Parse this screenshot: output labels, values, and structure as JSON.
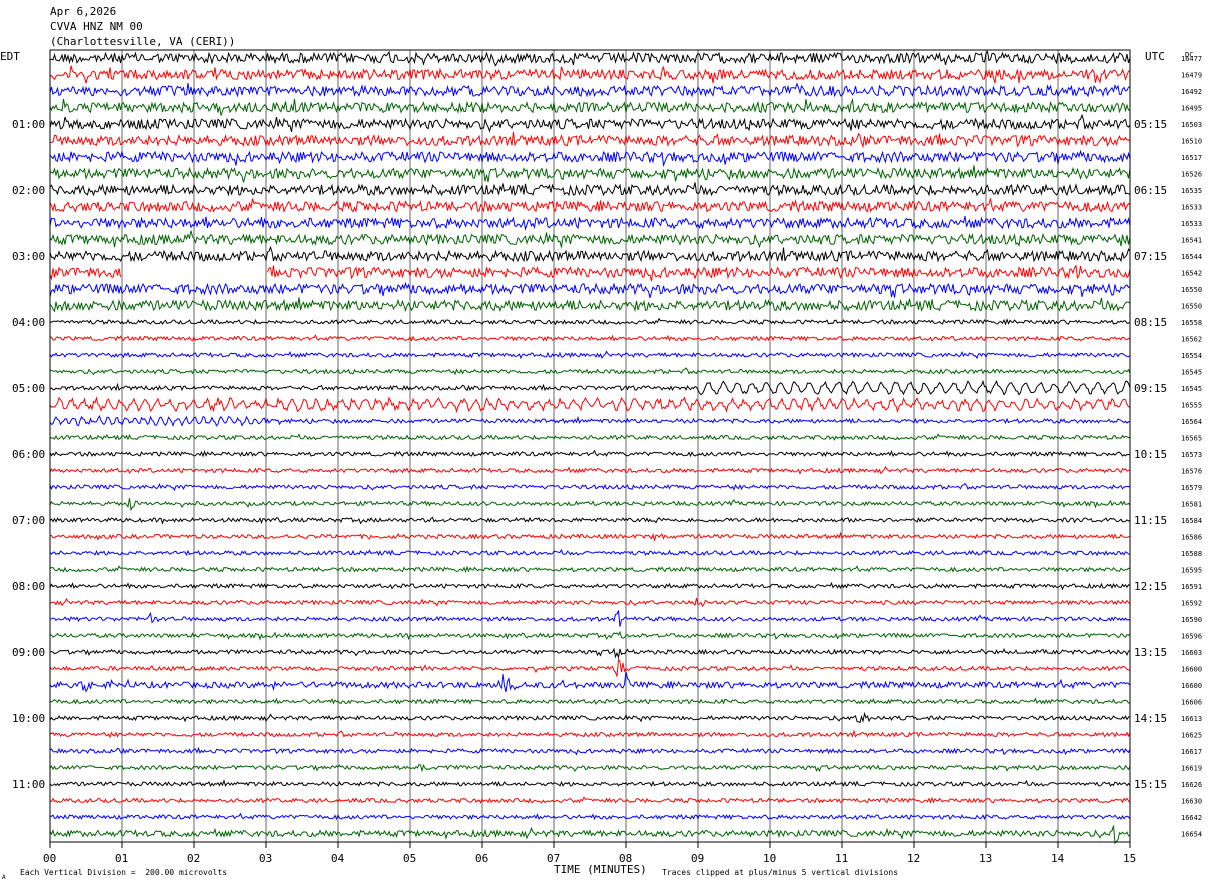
{
  "header": {
    "date": "Apr 6,2026",
    "station": "CVVA HNZ NM 00",
    "location": "(Charlottesville, VA (CERI))"
  },
  "footer": {
    "scale_note": "Each Vertical Division =  200.00 microvolts",
    "clip_note": "Traces clipped at plus/minus 5 vertical divisions",
    "corner_mark": "A"
  },
  "colors": {
    "trace_cycle": [
      "#000000",
      "#ff0000",
      "#0000ff",
      "#006400"
    ],
    "grid": "#000000",
    "background": "#ffffff"
  },
  "chart_data": {
    "type": "line",
    "subtype": "helicorder",
    "xlabel": "TIME (MINUTES)",
    "left_axis_label": "EDT",
    "right_axis_label": "UTC",
    "dc_label": "DC",
    "xlim": [
      0,
      15
    ],
    "x_ticks": [
      "00",
      "01",
      "02",
      "03",
      "04",
      "05",
      "06",
      "07",
      "08",
      "09",
      "10",
      "11",
      "12",
      "13",
      "14",
      "15"
    ],
    "minutes_per_line": 15,
    "line_count": 48,
    "left_hour_labels": [
      {
        "line": 4,
        "label": "01:00"
      },
      {
        "line": 8,
        "label": "02:00"
      },
      {
        "line": 12,
        "label": "03:00"
      },
      {
        "line": 16,
        "label": "04:00"
      },
      {
        "line": 20,
        "label": "05:00"
      },
      {
        "line": 24,
        "label": "06:00"
      },
      {
        "line": 28,
        "label": "07:00"
      },
      {
        "line": 32,
        "label": "08:00"
      },
      {
        "line": 36,
        "label": "09:00"
      },
      {
        "line": 40,
        "label": "10:00"
      },
      {
        "line": 44,
        "label": "11:00"
      }
    ],
    "right_hour_labels": [
      {
        "line": 4,
        "label": "05:15"
      },
      {
        "line": 8,
        "label": "06:15"
      },
      {
        "line": 12,
        "label": "07:15"
      },
      {
        "line": 16,
        "label": "08:15"
      },
      {
        "line": 20,
        "label": "09:15"
      },
      {
        "line": 24,
        "label": "10:15"
      },
      {
        "line": 28,
        "label": "11:15"
      },
      {
        "line": 32,
        "label": "12:15"
      },
      {
        "line": 36,
        "label": "13:15"
      },
      {
        "line": 40,
        "label": "14:15"
      },
      {
        "line": 44,
        "label": "15:15"
      }
    ],
    "dc_offsets": [
      16477,
      16479,
      16492,
      16495,
      16503,
      16510,
      16517,
      16526,
      16535,
      16533,
      16533,
      16541,
      16544,
      16542,
      16550,
      16550,
      16558,
      16562,
      16554,
      16545,
      16545,
      16555,
      16564,
      16565,
      16573,
      16576,
      16579,
      16581,
      16584,
      16586,
      16588,
      16595,
      16591,
      16592,
      16590,
      16596,
      16603,
      16600,
      16600,
      16606,
      16613,
      16625,
      16617,
      16619,
      16626,
      16630,
      16642,
      16654
    ],
    "noise_amplitude": [
      5,
      5,
      5,
      5,
      5,
      5,
      5,
      5,
      5,
      5,
      5,
      5,
      5,
      5,
      5,
      5,
      2,
      2,
      2,
      2,
      2,
      3,
      2,
      2,
      2,
      2,
      2,
      2,
      2,
      2,
      2,
      2,
      2,
      2,
      2,
      2,
      2,
      2,
      3,
      2,
      2,
      2,
      2,
      2,
      2,
      2,
      2,
      3
    ],
    "data_gaps": [
      {
        "line": 13,
        "from_minute": 1.0,
        "to_minute": 3.0
      }
    ],
    "events": [
      {
        "line": 11,
        "minute": 1.8,
        "amp": 8
      },
      {
        "line": 13,
        "minute": 14.3,
        "amp": 9
      },
      {
        "line": 27,
        "minute": 1.1,
        "amp": 7
      },
      {
        "line": 29,
        "minute": 8.4,
        "amp": 8
      },
      {
        "line": 33,
        "minute": 9.0,
        "amp": 5
      },
      {
        "line": 34,
        "minute": 1.4,
        "amp": 7
      },
      {
        "line": 34,
        "minute": 7.9,
        "amp": 10
      },
      {
        "line": 35,
        "minute": 7.9,
        "amp": 8
      },
      {
        "line": 36,
        "minute": 7.9,
        "amp": 8
      },
      {
        "line": 37,
        "minute": 7.9,
        "amp": 9
      },
      {
        "line": 38,
        "minute": 6.3,
        "amp": 12
      },
      {
        "line": 38,
        "minute": 8.0,
        "amp": 12
      },
      {
        "line": 38,
        "minute": 0.5,
        "amp": 6
      },
      {
        "line": 40,
        "minute": 11.3,
        "amp": 9
      },
      {
        "line": 43,
        "minute": 5.2,
        "amp": 7
      },
      {
        "line": 47,
        "minute": 14.8,
        "amp": 9
      }
    ],
    "oscillations": [
      {
        "line": 20,
        "from_minute": 9.0,
        "to_minute": 15.0,
        "amp": 5,
        "period": 0.2
      },
      {
        "line": 21,
        "from_minute": 0.0,
        "to_minute": 15.0,
        "amp": 4,
        "period": 0.17
      },
      {
        "line": 22,
        "from_minute": 0.0,
        "to_minute": 3.0,
        "amp": 3,
        "period": 0.12
      }
    ]
  }
}
